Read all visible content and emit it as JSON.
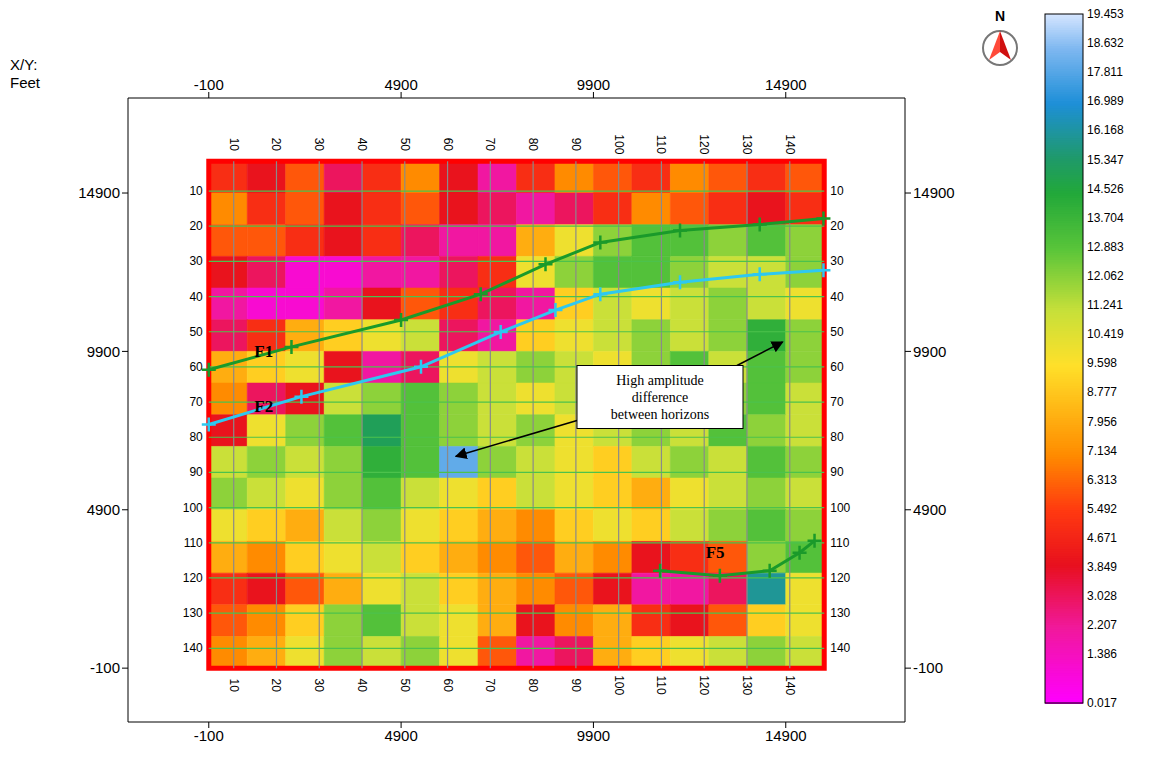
{
  "chart_data": {
    "type": "heatmap",
    "axis_title": [
      "X/Y:",
      "Feet"
    ],
    "xlim": [
      -2200,
      18000
    ],
    "xticks": [
      -100,
      4900,
      9900,
      14900
    ],
    "ylim": [
      -1800,
      17900
    ],
    "yticks": [
      -100,
      4900,
      9900,
      14900
    ],
    "grid": true,
    "x_edges": [
      -100,
      900,
      1900,
      2900,
      3900,
      4900,
      5900,
      6900,
      7900,
      8900,
      9900,
      10900,
      11900,
      12900,
      13900,
      14900,
      15900
    ],
    "y_edges": [
      15900,
      14900,
      13900,
      12900,
      11900,
      10900,
      9900,
      8900,
      7900,
      6900,
      5900,
      4900,
      3900,
      2900,
      1900,
      900,
      -100
    ],
    "cells": [
      [
        5,
        4,
        6,
        3,
        5,
        7,
        4,
        2,
        5,
        7,
        6,
        5,
        7,
        6,
        5,
        6
      ],
      [
        7,
        5,
        6,
        4,
        5,
        6,
        4,
        3,
        2,
        3,
        5,
        7,
        6,
        5,
        4,
        5
      ],
      [
        6,
        6,
        5,
        4,
        5,
        3,
        2,
        2,
        8,
        10,
        12,
        13,
        13,
        12,
        13,
        12
      ],
      [
        4,
        3,
        1,
        1,
        2,
        2,
        3,
        5,
        10,
        12,
        13,
        13,
        12,
        11,
        11,
        12
      ],
      [
        2,
        1,
        1,
        2,
        4,
        6,
        5,
        3,
        2,
        9,
        11,
        10,
        11,
        12,
        11,
        10
      ],
      [
        3,
        5,
        8,
        9,
        10,
        11,
        3,
        2,
        9,
        10,
        11,
        12,
        11,
        12,
        14,
        12
      ],
      [
        8,
        9,
        10,
        4,
        2,
        3,
        10,
        11,
        12,
        11,
        10,
        12,
        13,
        11,
        13,
        12
      ],
      [
        7,
        3,
        4,
        11,
        12,
        13,
        12,
        11,
        10,
        11,
        12,
        11,
        10,
        12,
        13,
        11
      ],
      [
        4,
        10,
        12,
        13,
        15,
        13,
        12,
        11,
        12,
        10,
        11,
        12,
        11,
        13,
        12,
        11
      ],
      [
        11,
        12,
        11,
        12,
        14,
        13,
        18,
        12,
        11,
        10,
        9,
        11,
        12,
        11,
        13,
        12
      ],
      [
        12,
        11,
        10,
        12,
        13,
        11,
        10,
        9,
        11,
        10,
        9,
        8,
        10,
        11,
        12,
        11
      ],
      [
        10,
        9,
        8,
        11,
        12,
        10,
        9,
        8,
        7,
        9,
        10,
        9,
        11,
        12,
        13,
        12
      ],
      [
        8,
        7,
        9,
        10,
        11,
        9,
        8,
        7,
        6,
        8,
        7,
        4,
        5,
        6,
        12,
        13
      ],
      [
        5,
        4,
        6,
        8,
        10,
        11,
        9,
        8,
        7,
        6,
        4,
        2,
        2,
        3,
        16,
        10
      ],
      [
        6,
        7,
        9,
        12,
        13,
        11,
        10,
        8,
        4,
        7,
        8,
        5,
        4,
        6,
        9,
        10
      ],
      [
        7,
        8,
        10,
        12,
        11,
        12,
        10,
        6,
        2,
        3,
        8,
        9,
        10,
        11,
        12,
        11
      ]
    ],
    "colorbar": {
      "range": [
        0.017,
        19.453
      ],
      "ticks": [
        19.453,
        18.632,
        17.811,
        16.989,
        16.168,
        15.347,
        14.526,
        13.704,
        12.883,
        12.062,
        11.241,
        10.419,
        9.598,
        8.777,
        7.956,
        7.134,
        6.313,
        5.492,
        4.671,
        3.849,
        3.028,
        2.207,
        1.386,
        0.017
      ]
    },
    "inlines": {
      "labels": [
        10,
        20,
        30,
        40,
        50,
        60,
        70,
        80,
        90,
        100,
        110,
        120,
        130,
        140
      ],
      "x": [
        548,
        1660,
        2772,
        3884,
        4996,
        6108,
        7220,
        8332,
        9444,
        10556,
        11668,
        12780,
        13892,
        15004
      ]
    },
    "crosslines": {
      "labels": [
        10,
        20,
        30,
        40,
        50,
        60,
        70,
        80,
        90,
        100,
        110,
        120,
        130,
        140
      ],
      "y": [
        14963,
        13853,
        12742,
        11632,
        10521,
        9411,
        8300,
        7190,
        6079,
        4969,
        3858,
        2748,
        1637,
        527
      ]
    },
    "faults": [
      {
        "name": "F1",
        "color": "#1a9a2a",
        "marker": "plus",
        "x": [
          -100,
          2050,
          4899,
          6971,
          8654,
          10079,
          12151,
          14223,
          15880
        ],
        "y": [
          9320,
          10042,
          10890,
          11706,
          12648,
          13339,
          13716,
          13904,
          14093
        ]
      },
      {
        "name": "F2",
        "color": "#2ec8f0",
        "marker": "plus",
        "x": [
          -100,
          2309,
          5417,
          7489,
          8913,
          10079,
          12151,
          14223,
          15880
        ],
        "y": [
          7593,
          8472,
          9414,
          10513,
          11204,
          11706,
          12083,
          12334,
          12460
        ]
      },
      {
        "name": "F5",
        "color": "#1a9a2a",
        "marker": "plus",
        "x": [
          11633,
          13187,
          14482,
          15259,
          15648
        ],
        "y": [
          2977,
          2820,
          2977,
          3542,
          3919
        ]
      }
    ],
    "annotation": {
      "text": "High amplitude difference between horizons",
      "x": [
        6323,
        14818
      ],
      "y": [
        6588,
        10199
      ]
    },
    "north": "N"
  }
}
